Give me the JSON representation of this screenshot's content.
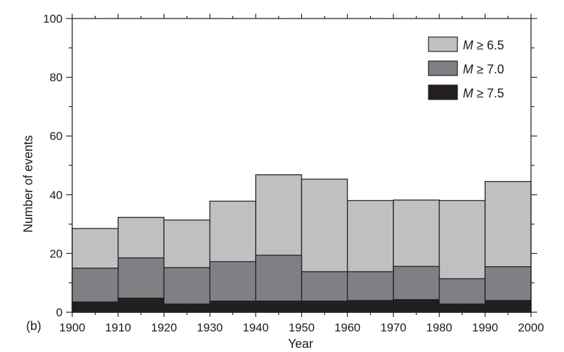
{
  "chart_data": {
    "type": "bar",
    "panel_label": "(b)",
    "xlabel": "Year",
    "ylabel": "Number of events",
    "xlim": [
      1900,
      2000
    ],
    "ylim": [
      0,
      100
    ],
    "x_ticks": [
      1900,
      1910,
      1920,
      1930,
      1940,
      1950,
      1960,
      1970,
      1980,
      1990,
      2000
    ],
    "y_ticks": [
      0,
      20,
      40,
      60,
      80,
      100
    ],
    "bins": [
      {
        "start": 1900,
        "end": 1910
      },
      {
        "start": 1910,
        "end": 1920
      },
      {
        "start": 1920,
        "end": 1930
      },
      {
        "start": 1930,
        "end": 1940
      },
      {
        "start": 1940,
        "end": 1950
      },
      {
        "start": 1950,
        "end": 1960
      },
      {
        "start": 1960,
        "end": 1970
      },
      {
        "start": 1970,
        "end": 1980
      },
      {
        "start": 1980,
        "end": 1990
      },
      {
        "start": 1990,
        "end": 2000
      }
    ],
    "series": [
      {
        "name": "M ≥ 6.5",
        "name_var": "M",
        "name_rest": " ≥ 6.5",
        "color": "#c0c0c2",
        "values": [
          28.5,
          32.3,
          31.4,
          37.8,
          46.8,
          45.3,
          38.0,
          38.2,
          38.0,
          44.5
        ]
      },
      {
        "name": "M ≥ 7.0",
        "name_var": "M",
        "name_rest": " ≥ 7.0",
        "color": "#808084",
        "values": [
          15.0,
          18.5,
          15.2,
          17.2,
          19.4,
          13.8,
          13.8,
          15.6,
          11.4,
          15.5
        ]
      },
      {
        "name": "M ≥ 7.5",
        "name_var": "M",
        "name_rest": " ≥ 7.5",
        "color": "#231f20",
        "values": [
          3.5,
          4.8,
          2.8,
          3.8,
          3.8,
          3.8,
          4.0,
          4.3,
          2.8,
          4.0
        ]
      }
    ],
    "legend_position": "top-right",
    "grid": false
  }
}
